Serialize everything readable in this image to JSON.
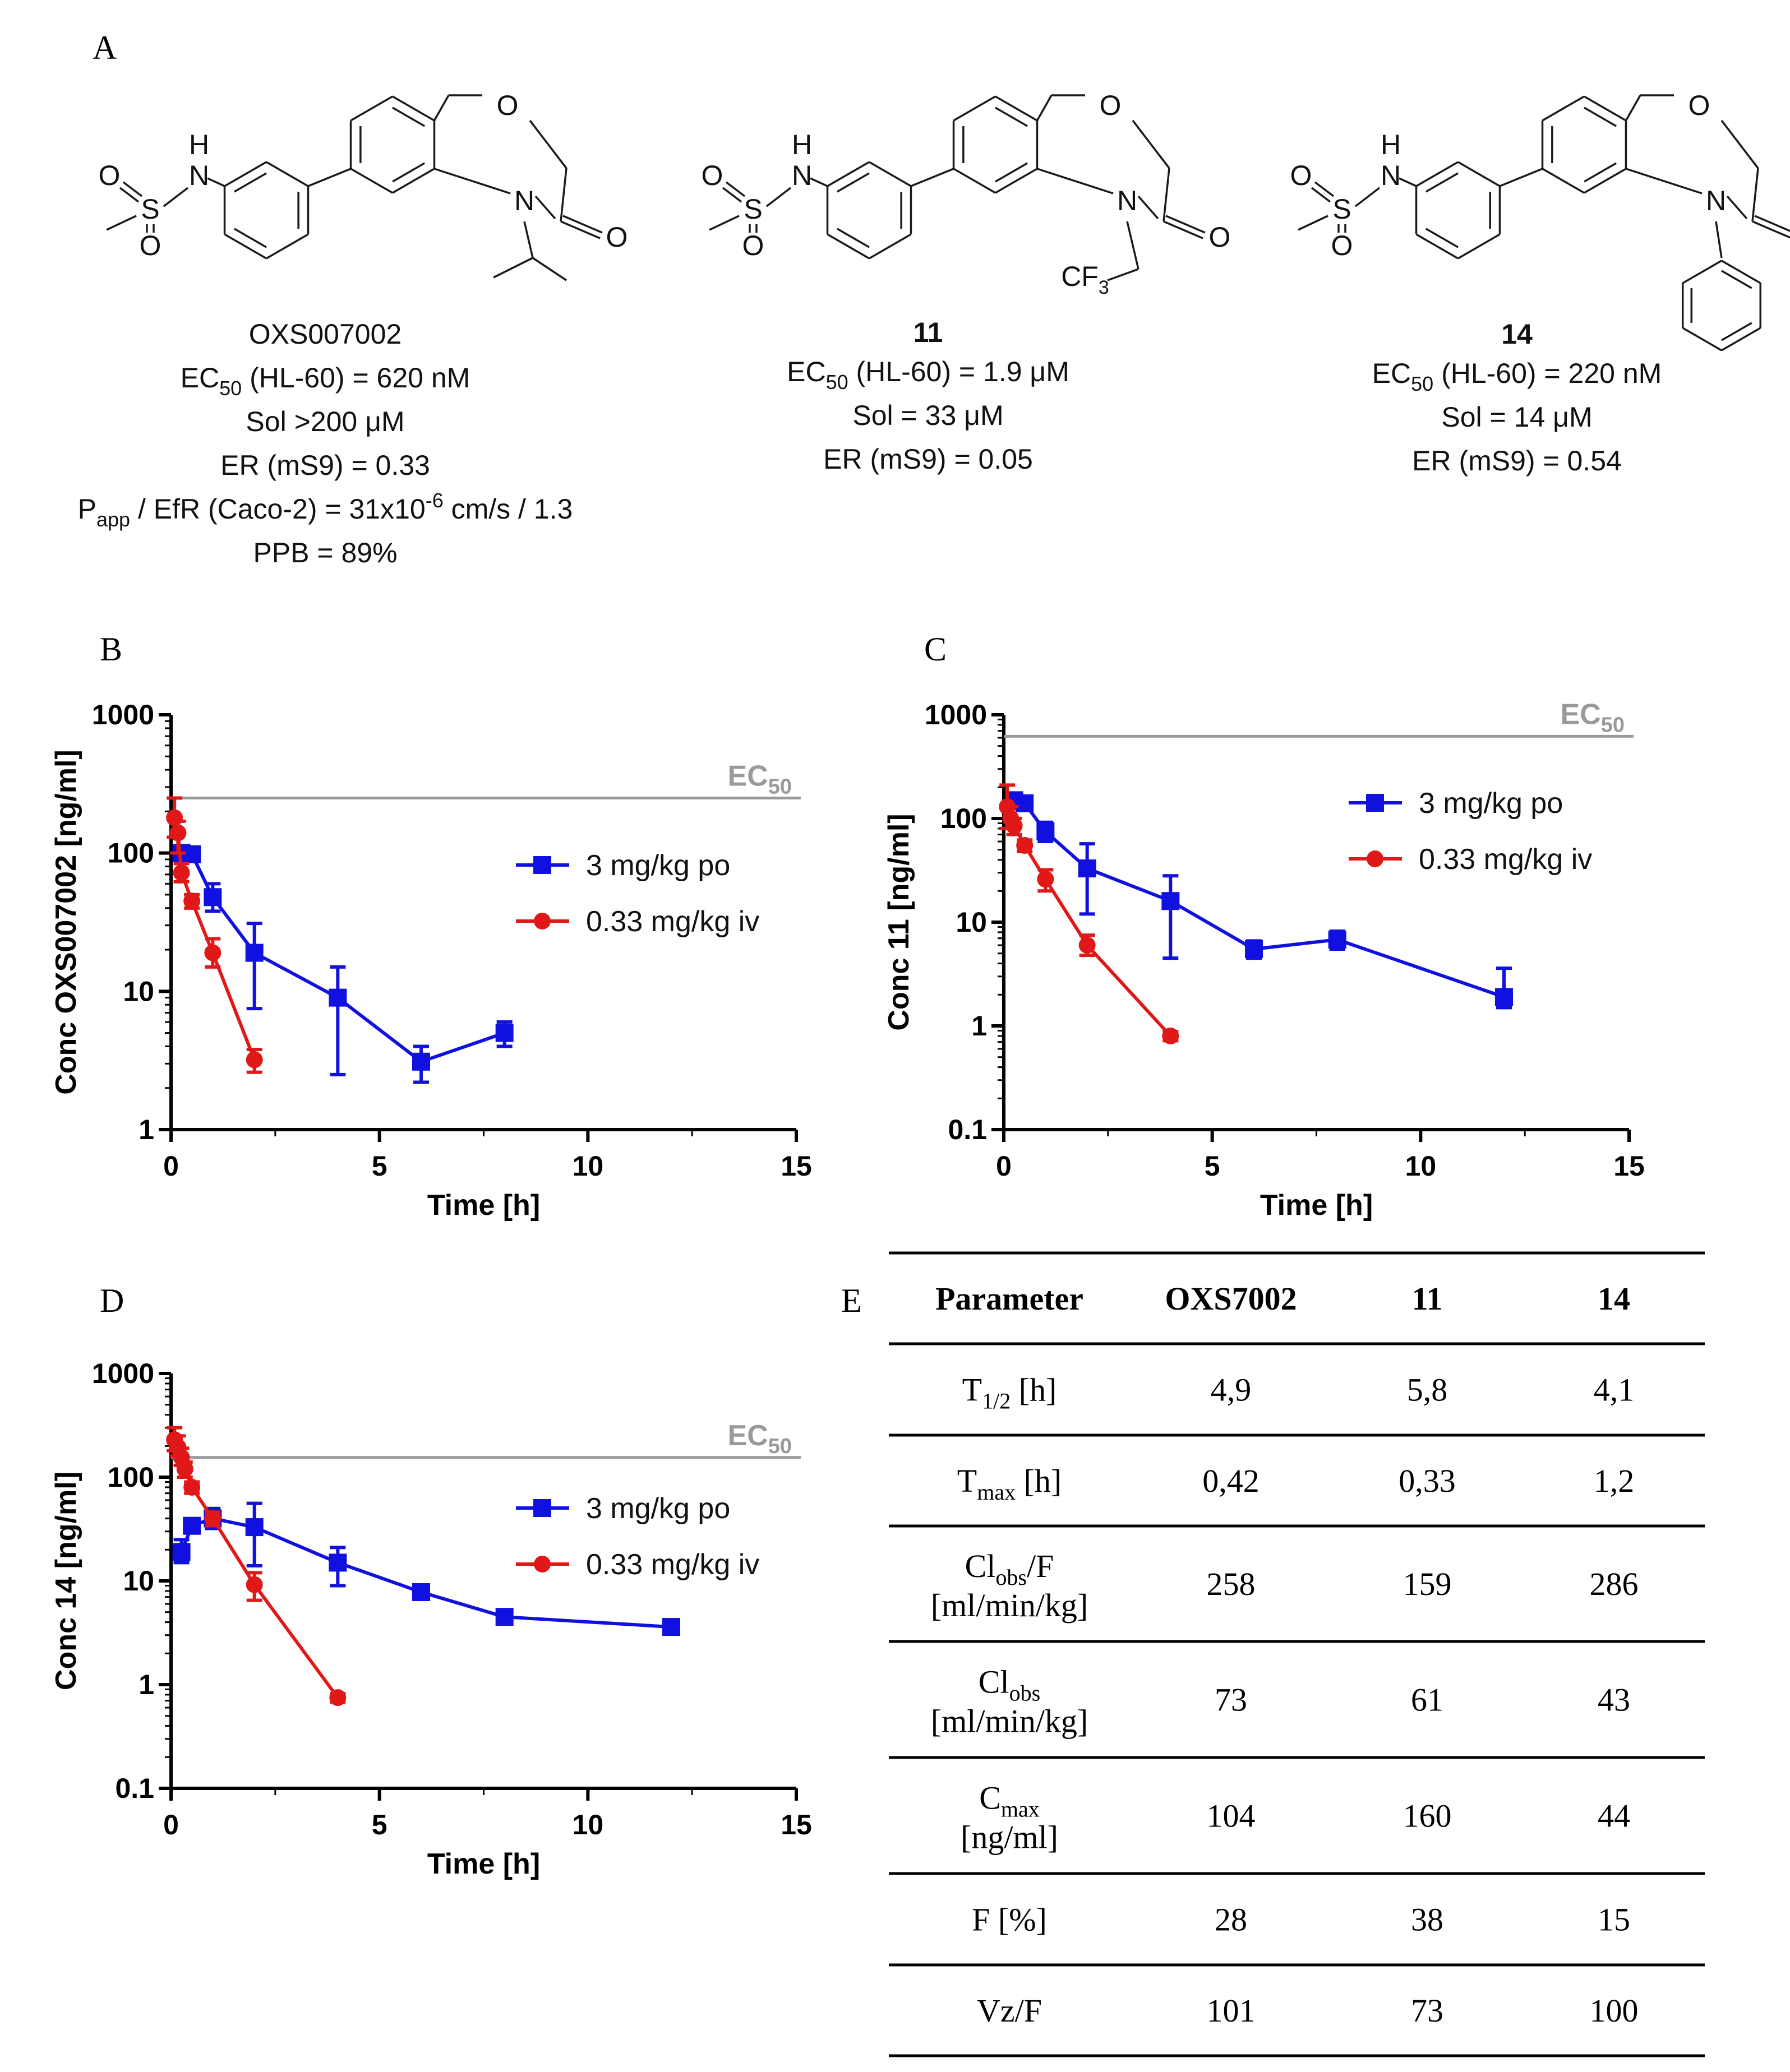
{
  "panel_labels": {
    "a": "A",
    "b": "B",
    "c": "C",
    "d": "D",
    "e": "E"
  },
  "compounds": [
    {
      "name": "OXS007002",
      "bold": false,
      "n_subst": "isopropyl",
      "mol_atoms": {
        "h": "H",
        "o": "O",
        "s": "S",
        "n": "N",
        "ring_o": "O",
        "ring_n": "N",
        "carbonyl_o": "O"
      },
      "lines": [
        {
          "pre": "EC",
          "sub": "50",
          "post": " (HL-60) = 620 nM"
        },
        {
          "pre": "Sol >200 μM"
        },
        {
          "pre": "ER (mS9) = 0.33"
        },
        {
          "pre": "P",
          "sub": "app",
          "post": " / EfR (Caco-2) = 31x10",
          "sup": "-6",
          "post2": " cm/s / 1.3"
        },
        {
          "pre": "PPB = 89%"
        }
      ]
    },
    {
      "name": "11",
      "bold": true,
      "n_subst": "trifluoroethyl",
      "subst_label": "CF",
      "subst_sub": "3",
      "mol_atoms": {
        "h": "H",
        "o": "O",
        "s": "S",
        "n": "N",
        "ring_o": "O",
        "ring_n": "N",
        "carbonyl_o": "O"
      },
      "lines": [
        {
          "pre": "EC",
          "sub": "50",
          "post": " (HL-60) = 1.9 μM"
        },
        {
          "pre": "Sol = 33 μM"
        },
        {
          "pre": "ER (mS9) = 0.05"
        }
      ]
    },
    {
      "name": "14",
      "bold": true,
      "n_subst": "phenyl",
      "mol_atoms": {
        "h": "H",
        "o": "O",
        "s": "S",
        "n": "N",
        "ring_o": "O",
        "ring_n": "N",
        "carbonyl_o": "O"
      },
      "lines": [
        {
          "pre": "EC",
          "sub": "50",
          "post": " (HL-60) = 220 nM"
        },
        {
          "pre": "Sol = 14 μM"
        },
        {
          "pre": "ER (mS9) = 0.54"
        }
      ]
    }
  ],
  "chart_data": [
    {
      "id": "B",
      "type": "line",
      "ylabel": "Conc OXS007002 [ng/ml]",
      "xlabel": "Time [h]",
      "xlim": [
        0,
        15
      ],
      "ylim": [
        1,
        1000
      ],
      "yscale": "log",
      "xticks": [
        0,
        5,
        10,
        15
      ],
      "yticks": [
        1,
        10,
        100,
        1000
      ],
      "ec50": {
        "label": "EC",
        "sub": "50",
        "value": 250
      },
      "series": [
        {
          "name": "3 mg/kg po",
          "color": "#1010e0",
          "marker": "square",
          "x": [
            0.25,
            0.5,
            1,
            2,
            4,
            6,
            8
          ],
          "y": [
            100,
            98,
            48,
            19,
            9,
            3.1,
            5
          ],
          "err": [
            [
              90,
              110
            ],
            [
              90,
              105
            ],
            [
              38,
              60
            ],
            [
              7.5,
              31
            ],
            [
              2.5,
              15
            ],
            [
              2.2,
              4
            ],
            [
              4,
              6
            ]
          ]
        },
        {
          "name": "0.33 mg/kg iv",
          "color": "#e01818",
          "marker": "circle",
          "x": [
            0.083,
            0.167,
            0.25,
            0.5,
            1,
            2
          ],
          "y": [
            180,
            140,
            72,
            45,
            19,
            3.2
          ],
          "err": [
            [
              130,
              250
            ],
            [
              100,
              170
            ],
            [
              62,
              84
            ],
            [
              40,
              50
            ],
            [
              15,
              24
            ],
            [
              2.6,
              3.8
            ]
          ]
        }
      ]
    },
    {
      "id": "C",
      "type": "line",
      "ylabel": "Conc 11 [ng/ml]",
      "xlabel": "Time [h]",
      "xlim": [
        0,
        15
      ],
      "ylim": [
        0.1,
        1000
      ],
      "yscale": "log",
      "xticks": [
        0,
        5,
        10,
        15
      ],
      "yticks": [
        0.1,
        1,
        10,
        100,
        1000
      ],
      "ec50": {
        "label": "EC",
        "sub": "50",
        "value": 620
      },
      "series": [
        {
          "name": "3 mg/kg po",
          "color": "#1010e0",
          "marker": "square",
          "x": [
            0.25,
            0.5,
            1,
            2,
            4,
            6,
            8,
            12
          ],
          "y": [
            150,
            140,
            75,
            33,
            16,
            5.5,
            6.8,
            1.9
          ],
          "err": [
            [
              125,
              175
            ],
            [
              120,
              160
            ],
            [
              60,
              92
            ],
            [
              12,
              57
            ],
            [
              4.5,
              28
            ],
            [
              4.5,
              6.6
            ],
            [
              5.5,
              8.2
            ],
            [
              1.5,
              3.6
            ]
          ]
        },
        {
          "name": "0.33 mg/kg iv",
          "color": "#e01818",
          "marker": "circle",
          "x": [
            0.083,
            0.167,
            0.25,
            0.5,
            1,
            2,
            4
          ],
          "y": [
            130,
            100,
            85,
            55,
            26,
            6,
            0.8
          ],
          "err": [
            [
              80,
              210
            ],
            [
              80,
              130
            ],
            [
              70,
              100
            ],
            [
              48,
              62
            ],
            [
              20,
              32
            ],
            [
              4.8,
              7.5
            ],
            [
              0.72,
              0.88
            ]
          ]
        }
      ]
    },
    {
      "id": "D",
      "type": "line",
      "ylabel": "Conc 14 [ng/ml]",
      "xlabel": "Time [h]",
      "xlim": [
        0,
        15
      ],
      "ylim": [
        0.1,
        1000
      ],
      "yscale": "log",
      "xticks": [
        0,
        5,
        10,
        15
      ],
      "yticks": [
        0.1,
        1,
        10,
        100,
        1000
      ],
      "ec50": {
        "label": "EC",
        "sub": "50",
        "value": 155
      },
      "series": [
        {
          "name": "3 mg/kg po",
          "color": "#1010e0",
          "marker": "square",
          "x": [
            0.25,
            0.5,
            1,
            2,
            4,
            6,
            8,
            12
          ],
          "y": [
            19,
            34,
            40,
            33,
            15,
            7.8,
            4.5,
            3.6
          ],
          "err": [
            [
              15,
              25
            ],
            [
              30,
              38
            ],
            [
              32,
              50
            ],
            [
              14,
              56
            ],
            [
              9,
              21
            ],
            [
              7,
              8.6
            ],
            [
              4,
              5
            ],
            [
              3.2,
              4
            ]
          ]
        },
        {
          "name": "0.33 mg/kg iv",
          "color": "#e01818",
          "marker": "circle",
          "x": [
            0.083,
            0.167,
            0.25,
            0.333,
            0.5,
            1,
            2,
            4
          ],
          "y": [
            230,
            195,
            155,
            120,
            80,
            40,
            9.2,
            0.75
          ],
          "err": [
            [
              180,
              300
            ],
            [
              160,
              250
            ],
            [
              130,
              190
            ],
            [
              100,
              140
            ],
            [
              70,
              90
            ],
            [
              34,
              46
            ],
            [
              6.5,
              12
            ],
            [
              0.68,
              0.82
            ]
          ]
        }
      ]
    },
    {
      "id": "E",
      "type": "table",
      "columns": [
        "Parameter",
        "OXS7002",
        "11",
        "14"
      ],
      "rows": [
        {
          "label": "T",
          "sub": "1/2",
          "tail": " [h]",
          "line2": "",
          "values": [
            "4,9",
            "5,8",
            "4,1"
          ]
        },
        {
          "label": "T",
          "sub": "max",
          "tail": " [h]",
          "line2": "",
          "values": [
            "0,42",
            "0,33",
            "1,2"
          ]
        },
        {
          "label": "Cl",
          "sub": "obs",
          "tail": "/F",
          "line2": "[ml/min/kg]",
          "values": [
            "258",
            "159",
            "286"
          ]
        },
        {
          "label": "Cl",
          "sub": "obs",
          "tail": "",
          "line2": "[ml/min/kg]",
          "values": [
            "73",
            "61",
            "43"
          ]
        },
        {
          "label": "C",
          "sub": "max",
          "tail": "",
          "line2": "[ng/ml]",
          "values": [
            "104",
            "160",
            "44"
          ]
        },
        {
          "label": "F [%]",
          "sub": "",
          "tail": "",
          "line2": "",
          "values": [
            "28",
            "38",
            "15"
          ]
        },
        {
          "label": "Vz/F",
          "sub": "",
          "tail": "",
          "line2": "",
          "values": [
            "101",
            "73",
            "100"
          ]
        }
      ]
    }
  ]
}
